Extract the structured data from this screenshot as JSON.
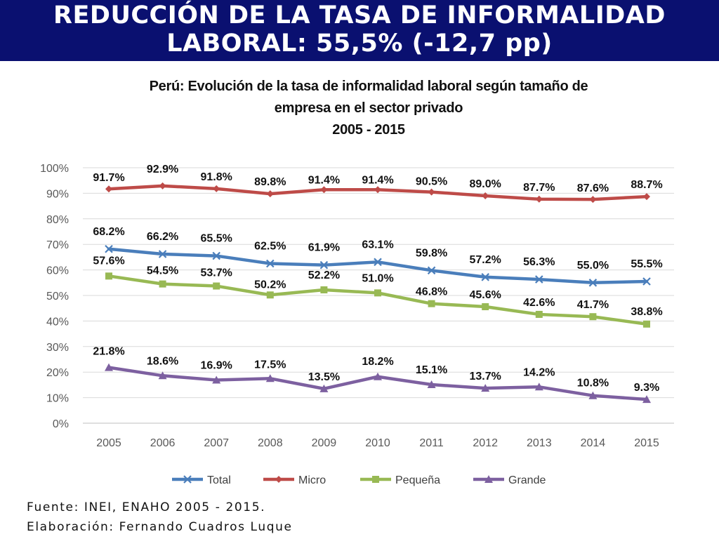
{
  "banner": {
    "line1": "REDUCCIÓN DE LA TASA DE INFORMALIDAD",
    "line2": "LABORAL: 55,5% (-12,7 pp)"
  },
  "footer": {
    "source": "Fuente: INEI, ENAHO 2005 - 2015.",
    "author": "Elaboración: Fernando Cuadros Luque"
  },
  "chart_data": {
    "type": "line",
    "title_lines": [
      "Perú: Evolución de la tasa de informalidad laboral según tamaño de",
      "empresa en el sector privado",
      "2005 - 2015"
    ],
    "categories": [
      "2005",
      "2006",
      "2007",
      "2008",
      "2009",
      "2010",
      "2011",
      "2012",
      "2013",
      "2014",
      "2015"
    ],
    "y_ticks": [
      "0%",
      "10%",
      "20%",
      "30%",
      "40%",
      "50%",
      "60%",
      "70%",
      "80%",
      "90%",
      "100%"
    ],
    "ylim": [
      0,
      100
    ],
    "grid": true,
    "legend_position": "bottom",
    "series": [
      {
        "name": "Total",
        "color": "#4a7ebb",
        "marker": "x",
        "values": [
          68.2,
          66.2,
          65.5,
          62.5,
          61.9,
          63.1,
          59.8,
          57.2,
          56.3,
          55.0,
          55.5
        ],
        "labels": [
          "68.2%",
          "66.2%",
          "65.5%",
          "62.5%",
          "61.9%",
          "63.1%",
          "59.8%",
          "57.2%",
          "56.3%",
          "55.0%",
          "55.5%"
        ]
      },
      {
        "name": "Micro",
        "color": "#be4b48",
        "marker": "diamond",
        "values": [
          91.7,
          92.9,
          91.8,
          89.8,
          91.4,
          91.4,
          90.5,
          89.0,
          87.7,
          87.6,
          88.7
        ],
        "labels": [
          "91.7%",
          "92.9%",
          "91.8%",
          "89.8%",
          "91.4%",
          "91.4%",
          "90.5%",
          "89.0%",
          "87.7%",
          "87.6%",
          "88.7%"
        ]
      },
      {
        "name": "Pequeña",
        "color": "#98b954",
        "marker": "square",
        "values": [
          57.6,
          54.5,
          53.7,
          50.2,
          52.2,
          51.0,
          46.8,
          45.6,
          42.6,
          41.7,
          38.8
        ],
        "labels": [
          "57.6%",
          "54.5%",
          "53.7%",
          "50.2%",
          "52.2%",
          "51.0%",
          "46.8%",
          "45.6%",
          "42.6%",
          "41.7%",
          "38.8%"
        ]
      },
      {
        "name": "Grande",
        "color": "#7d60a0",
        "marker": "triangle",
        "values": [
          21.8,
          18.6,
          16.9,
          17.5,
          13.5,
          18.2,
          15.1,
          13.7,
          14.2,
          10.8,
          9.3
        ],
        "labels": [
          "21.8%",
          "18.6%",
          "16.9%",
          "17.5%",
          "13.5%",
          "18.2%",
          "15.1%",
          "13.7%",
          "14.2%",
          "10.8%",
          "9.3%"
        ]
      }
    ]
  }
}
